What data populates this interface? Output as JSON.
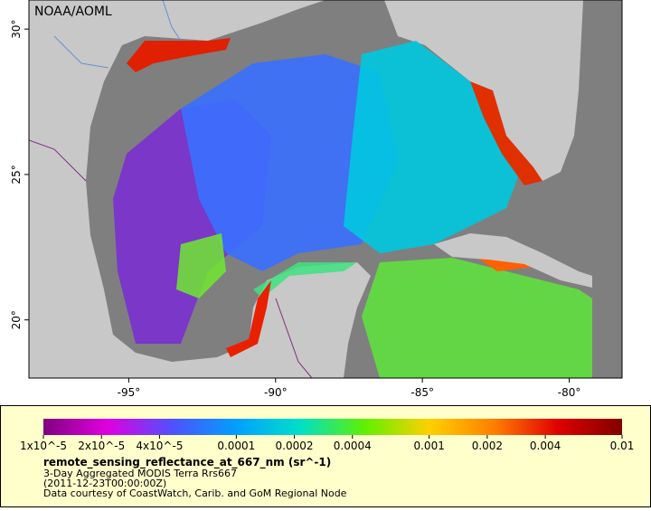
{
  "map": {
    "attribution": "NOAA/AOML",
    "xlim": [
      -98.4,
      -78.2
    ],
    "ylim": [
      18,
      31
    ],
    "xticks": [
      {
        "value": -95,
        "label": "-95°"
      },
      {
        "value": -90,
        "label": "-90°"
      },
      {
        "value": -85,
        "label": "-85°"
      },
      {
        "value": -80,
        "label": "-80°"
      }
    ],
    "yticks": [
      {
        "value": 30,
        "label": "30°"
      },
      {
        "value": 25,
        "label": "25°"
      },
      {
        "value": 20,
        "label": "20°"
      }
    ]
  },
  "colorbar": {
    "label": "remote_sensing_reflectance_at_667_nm (sr^-1)",
    "log": true,
    "lim": [
      1e-05,
      0.01
    ],
    "colors": [
      "#7f007f",
      "#e000e0",
      "#5050ff",
      "#00a0ff",
      "#00e0c8",
      "#60f000",
      "#ffd000",
      "#ff8000",
      "#e00000",
      "#800000"
    ],
    "ticks": [
      {
        "value": 1e-05,
        "label": "1x10^-5"
      },
      {
        "value": 2e-05,
        "label": "2x10^-5"
      },
      {
        "value": 4e-05,
        "label": "4x10^-5"
      },
      0.0001,
      0.0002,
      0.0004,
      0.001,
      0.002,
      0.004,
      0.01
    ]
  },
  "notes": [
    "3-Day Aggregated MODIS Terra Rrs667",
    "(2011-12-23T00:00:00Z)",
    "Data courtesy of CoastWatch, Carib. and GoM Regional Node"
  ]
}
